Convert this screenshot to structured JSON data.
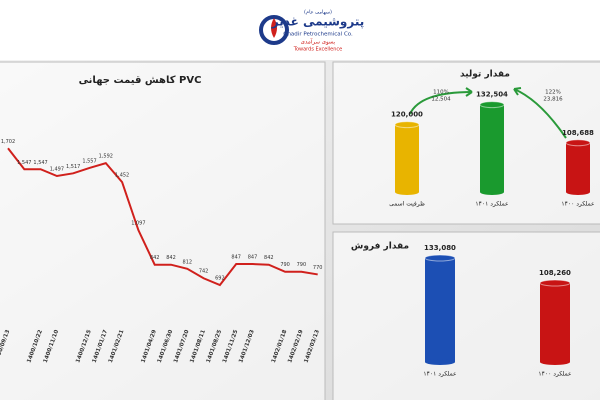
{
  "header": {
    "note_fa": "(سهامی عام)",
    "brand_fa": "پتروشیمی غدیر",
    "brand_en": "Ghadir Petrochemical Co.",
    "slogan_fa": "بسوی سرآمدی",
    "slogan_en": "Towards Excellence"
  },
  "chart_data": [
    {
      "type": "line",
      "title": "کاهش قیمت جهانی PVC",
      "color": "#d0201c",
      "categories": [
        "1400/09/13",
        null,
        "1400/10/22",
        "1400/11/10",
        null,
        "1400/12/15",
        "1401/01/17",
        "1401/02/21",
        null,
        "1401/04/29",
        "1401/06/30",
        "1401/07/20",
        "1401/08/11",
        "1401/08/25",
        "1401/11/25",
        "1401/12/03",
        null,
        "1402/01/18",
        "1402/02/19",
        "1402/03/13"
      ],
      "values": [
        1702,
        1547,
        1547,
        1497,
        1517,
        1557,
        1592,
        1452,
        1097,
        842,
        842,
        812,
        742,
        692,
        847,
        847,
        842,
        790,
        790,
        770
      ],
      "value_labels": [
        "1,702",
        "1,547",
        "1,547",
        "1,497",
        "1,517",
        "1,557",
        "1,592",
        "1,452",
        "1,097",
        "842",
        "842",
        "812",
        "742",
        "692",
        "847",
        "847",
        "842",
        "790",
        "790",
        "770"
      ],
      "ylim": [
        500,
        1800
      ]
    },
    {
      "type": "bar",
      "title": "مقدار تولید",
      "categories": [
        "ظرفیت اسمی",
        "عملکرد ۱۴۰۱",
        "عملکرد ۱۴۰۰"
      ],
      "values": [
        120000,
        132504,
        108688
      ],
      "value_labels": [
        "120,000",
        "132,504",
        "108,688"
      ],
      "colors": [
        "#e8b400",
        "#1a9a2e",
        "#c81414"
      ],
      "annotations": [
        "110%",
        "12,504",
        "122%",
        "23,816"
      ],
      "ylim": [
        78000,
        136000
      ]
    },
    {
      "type": "bar",
      "title": "مقدار فروش",
      "categories": [
        "عملکرد ۱۴۰۱",
        "عملکرد ۱۴۰۰"
      ],
      "values": [
        133080,
        108260
      ],
      "value_labels": [
        "133,080",
        "108,260"
      ],
      "colors": [
        "#1c4fb4",
        "#c81414"
      ],
      "ylim": [
        30000,
        140000
      ]
    }
  ]
}
